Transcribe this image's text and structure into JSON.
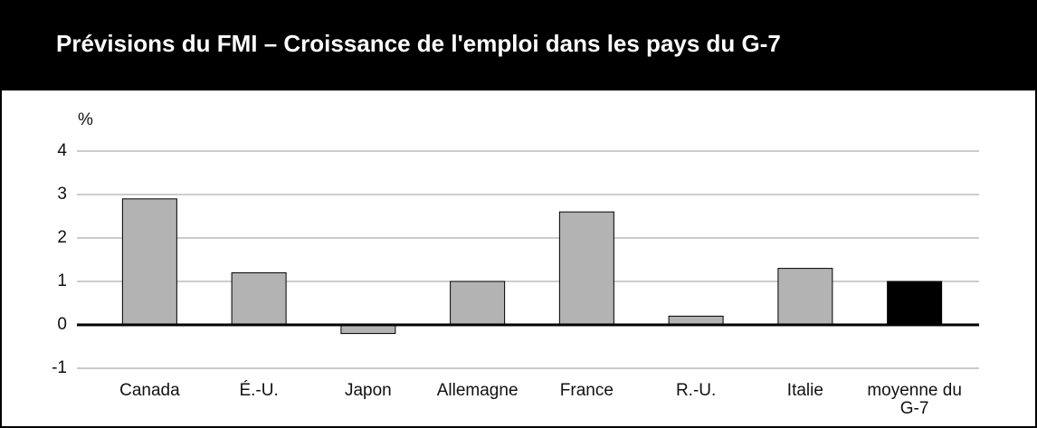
{
  "chart_data": {
    "type": "bar",
    "title": "Prévisions du FMI – Croissance de l'emploi dans les pays du G-7",
    "y_label": "%",
    "categories": [
      "Canada",
      "É.-U.",
      "Japon",
      "Allemagne",
      "France",
      "R.-U.",
      "Italie",
      "moyenne du G-7"
    ],
    "values": [
      2.9,
      1.2,
      -0.2,
      1.0,
      2.6,
      0.2,
      1.3,
      1.0
    ],
    "colors": [
      "#b3b3b3",
      "#b3b3b3",
      "#b3b3b3",
      "#b3b3b3",
      "#b3b3b3",
      "#b3b3b3",
      "#b3b3b3",
      "#000000"
    ],
    "ylim": [
      -1,
      4
    ],
    "yticks": [
      -1,
      0,
      1,
      2,
      3,
      4
    ],
    "grid": true
  }
}
